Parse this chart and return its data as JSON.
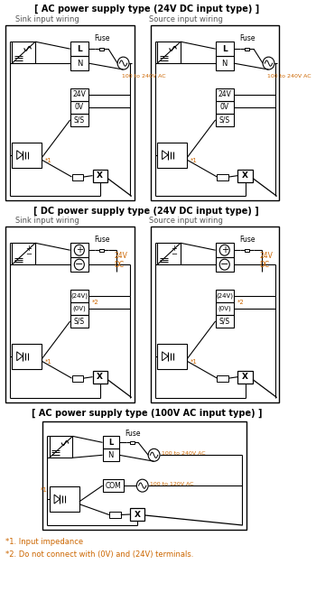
{
  "title_ac24": "[ AC power supply type (24V DC input type) ]",
  "title_dc24": "[ DC power supply type (24V DC input type) ]",
  "title_ac100": "[ AC power supply type (100V AC input type) ]",
  "label_sink": "Sink input wiring",
  "label_source": "Source input wiring",
  "footnote1": "*1. Input impedance",
  "footnote2": "*2. Do not connect with (0V) and (24V) terminals.",
  "black": "#000000",
  "gray": "#555555",
  "orange": "#cc6600",
  "white": "#ffffff",
  "fig_w": 3.5,
  "fig_h": 6.66,
  "dpi": 100
}
